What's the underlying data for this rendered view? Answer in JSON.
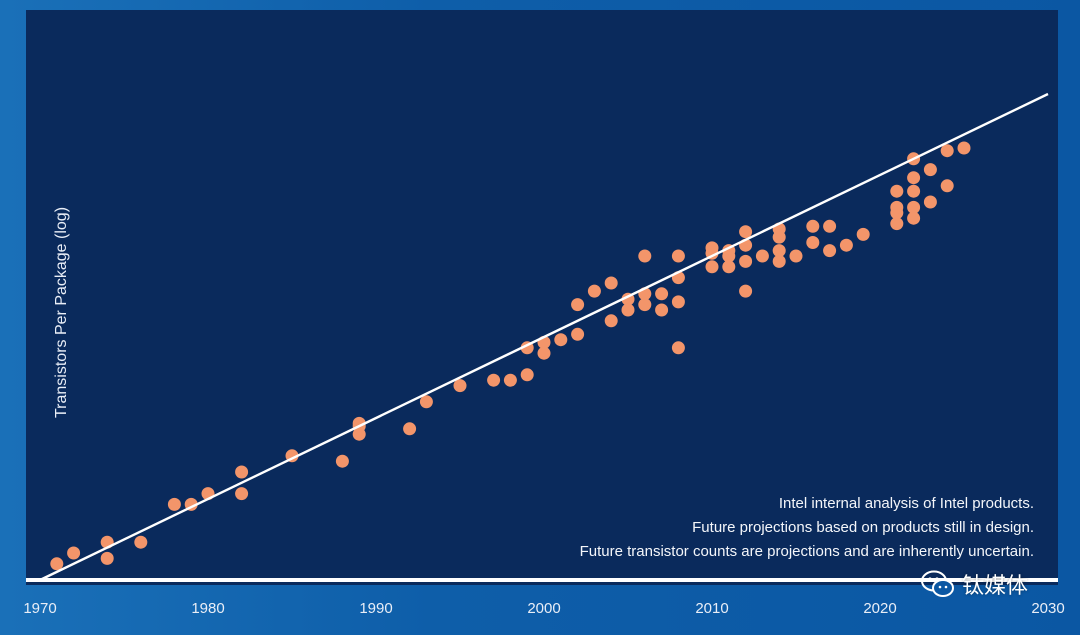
{
  "colors": {
    "background": "#0d5fae",
    "panel": "#0a2a5c",
    "points": "#f3956a",
    "trend_line": "#ffffff"
  },
  "chart_data": {
    "type": "scatter",
    "title": "",
    "xlabel": "",
    "ylabel": "Transistors Per Package (log)",
    "x_ticks": [
      "1970",
      "1980",
      "1990",
      "2000",
      "2010",
      "2020",
      "2030"
    ],
    "xlim": [
      1970,
      2030
    ],
    "ylim": [
      0,
      10
    ],
    "y_scale": "log (values as relative log level)",
    "grid": false,
    "legend": "none",
    "trend_line": {
      "from": [
        1970,
        0
      ],
      "to": [
        2030,
        9.0
      ]
    },
    "points": [
      [
        1971,
        0.3
      ],
      [
        1972,
        0.5
      ],
      [
        1974,
        0.7
      ],
      [
        1974,
        0.4
      ],
      [
        1976,
        0.7
      ],
      [
        1978,
        1.4
      ],
      [
        1979,
        1.4
      ],
      [
        1980,
        1.6
      ],
      [
        1982,
        1.6
      ],
      [
        1982,
        2.0
      ],
      [
        1985,
        2.3
      ],
      [
        1988,
        2.2
      ],
      [
        1989,
        2.7
      ],
      [
        1989,
        2.9
      ],
      [
        1989,
        2.85
      ],
      [
        1992,
        2.8
      ],
      [
        1993,
        3.3
      ],
      [
        1995,
        3.6
      ],
      [
        1997,
        3.7
      ],
      [
        1998,
        3.7
      ],
      [
        1999,
        3.8
      ],
      [
        1999,
        4.3
      ],
      [
        2000,
        4.2
      ],
      [
        2000,
        4.4
      ],
      [
        2001,
        4.45
      ],
      [
        2002,
        4.55
      ],
      [
        2002,
        5.1
      ],
      [
        2003,
        5.35
      ],
      [
        2004,
        4.8
      ],
      [
        2004,
        5.5
      ],
      [
        2005,
        5.0
      ],
      [
        2005,
        5.2
      ],
      [
        2006,
        5.1
      ],
      [
        2006,
        5.3
      ],
      [
        2006,
        6.0
      ],
      [
        2007,
        5.0
      ],
      [
        2007,
        5.3
      ],
      [
        2008,
        4.3
      ],
      [
        2008,
        5.15
      ],
      [
        2008,
        5.6
      ],
      [
        2008,
        6.0
      ],
      [
        2010,
        5.8
      ],
      [
        2010,
        6.05
      ],
      [
        2010,
        6.15
      ],
      [
        2011,
        5.8
      ],
      [
        2011,
        6.0
      ],
      [
        2011,
        6.1
      ],
      [
        2012,
        5.35
      ],
      [
        2012,
        5.9
      ],
      [
        2012,
        6.2
      ],
      [
        2012,
        6.45
      ],
      [
        2013,
        6.0
      ],
      [
        2014,
        5.9
      ],
      [
        2014,
        6.1
      ],
      [
        2014,
        6.35
      ],
      [
        2014,
        6.5
      ],
      [
        2015,
        6.0
      ],
      [
        2016,
        6.25
      ],
      [
        2016,
        6.55
      ],
      [
        2017,
        6.1
      ],
      [
        2017,
        6.55
      ],
      [
        2018,
        6.2
      ],
      [
        2019,
        6.4
      ],
      [
        2021,
        6.6
      ],
      [
        2021,
        6.8
      ],
      [
        2021,
        6.9
      ],
      [
        2021,
        7.2
      ],
      [
        2022,
        6.7
      ],
      [
        2022,
        6.9
      ],
      [
        2022,
        7.2
      ],
      [
        2022,
        7.45
      ],
      [
        2022,
        7.8
      ],
      [
        2023,
        7.0
      ],
      [
        2023,
        7.6
      ],
      [
        2024,
        7.3
      ],
      [
        2024,
        7.95
      ],
      [
        2025,
        8.0
      ]
    ]
  },
  "notes": [
    "Intel internal analysis of Intel products.",
    "Future projections based on products still in design.",
    "Future transistor counts are projections and are inherently uncertain."
  ],
  "watermark": {
    "text": "钛媒体",
    "icon": "wechat-icon"
  }
}
